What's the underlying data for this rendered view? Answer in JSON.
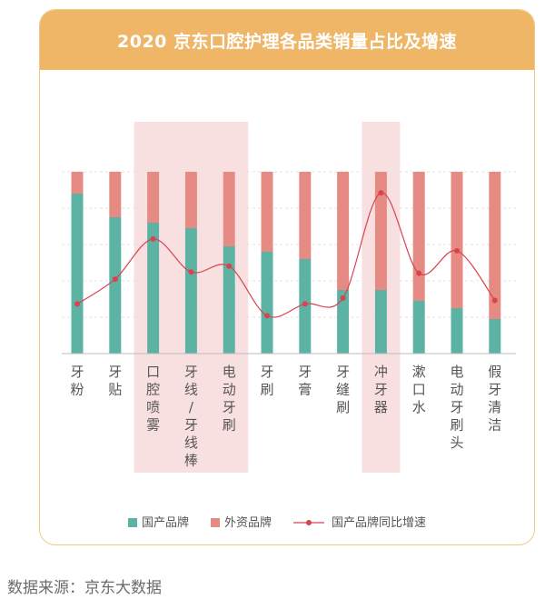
{
  "header": {
    "title": "2020 京东口腔护理各品类销量占比及增速"
  },
  "source": "数据来源：京东大数据",
  "colors": {
    "domestic": "#5db3a3",
    "foreign": "#e68b83",
    "line": "#d9434f",
    "highlight": "#f9e0e0",
    "header_bg": "#efb667"
  },
  "chart_data": {
    "type": "bar",
    "stacked": true,
    "categories": [
      "牙粉",
      "牙贴",
      "口腔喷雾",
      "牙线/牙线棒",
      "电动牙刷",
      "牙刷",
      "牙膏",
      "牙缝刷",
      "冲牙器",
      "漱口水",
      "电动牙刷头",
      "假牙清洁"
    ],
    "highlighted_categories": [
      "口腔喷雾",
      "牙线/牙线棒",
      "电动牙刷",
      "冲牙器"
    ],
    "series": [
      {
        "name": "国产品牌",
        "values": [
          0.88,
          0.75,
          0.72,
          0.69,
          0.59,
          0.56,
          0.52,
          0.35,
          0.35,
          0.29,
          0.25,
          0.19
        ]
      },
      {
        "name": "外资品牌",
        "values": [
          0.12,
          0.25,
          0.28,
          0.31,
          0.41,
          0.44,
          0.48,
          0.65,
          0.65,
          0.71,
          0.75,
          0.81
        ]
      },
      {
        "name": "国产品牌同比增速",
        "type": "line",
        "values": [
          0.42,
          0.63,
          0.97,
          0.69,
          0.74,
          0.32,
          0.42,
          0.47,
          1.36,
          0.68,
          0.87,
          0.45
        ]
      }
    ],
    "ylim": [
      0,
      1
    ],
    "legend_position": "bottom",
    "grid": true
  }
}
